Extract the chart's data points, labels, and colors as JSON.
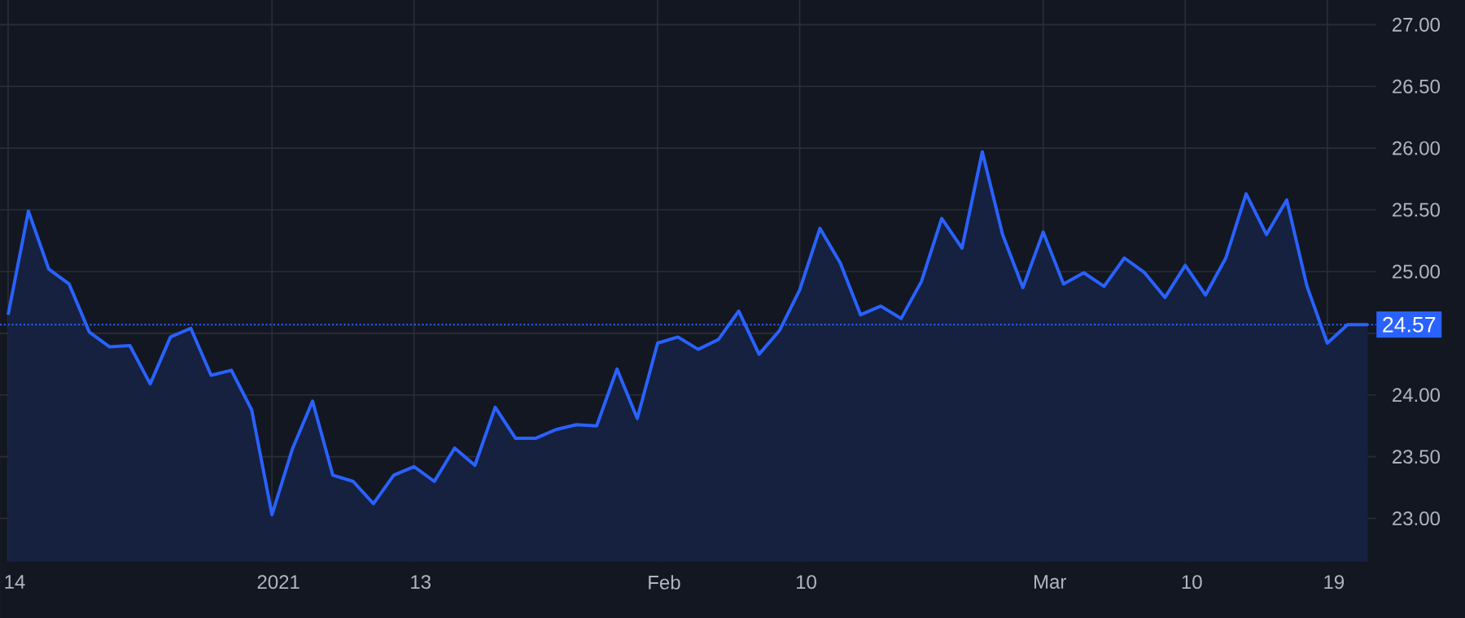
{
  "chart_data": {
    "type": "area",
    "categories": [
      "14",
      null,
      null,
      null,
      null,
      null,
      null,
      null,
      null,
      null,
      null,
      null,
      null,
      "2021",
      null,
      null,
      null,
      null,
      null,
      null,
      "13",
      null,
      null,
      null,
      null,
      null,
      null,
      null,
      null,
      null,
      null,
      null,
      "Feb",
      null,
      null,
      null,
      null,
      null,
      null,
      "10",
      null,
      null,
      null,
      null,
      null,
      null,
      null,
      null,
      null,
      null,
      null,
      "Mar",
      null,
      null,
      null,
      null,
      null,
      null,
      "10",
      null,
      null,
      null,
      null,
      null,
      null,
      "19",
      null,
      null
    ],
    "series": [
      {
        "color": "#2962ff",
        "values": [
          24.65,
          25.49,
          25.02,
          24.9,
          24.51,
          24.39,
          24.4,
          24.09,
          24.47,
          24.54,
          24.16,
          24.2,
          23.88,
          23.03,
          23.56,
          23.95,
          23.35,
          23.3,
          23.12,
          23.35,
          23.42,
          23.3,
          23.57,
          23.43,
          23.9,
          23.65,
          23.65,
          23.72,
          23.76,
          23.75,
          24.21,
          23.81,
          24.42,
          24.47,
          24.37,
          24.45,
          24.68,
          24.33,
          24.52,
          24.85,
          25.35,
          25.07,
          24.65,
          24.72,
          24.62,
          24.92,
          25.43,
          25.19,
          25.97,
          25.3,
          24.87,
          25.32,
          24.9,
          24.99,
          24.88,
          25.11,
          24.99,
          24.79,
          25.05,
          24.81,
          25.11,
          25.63,
          25.3,
          25.58,
          24.88,
          24.42,
          24.57,
          24.57
        ]
      }
    ],
    "ylim": [
      22.65,
      27.2
    ],
    "yticks": [
      {
        "value": 23,
        "label": "23.00"
      },
      {
        "value": 23.5,
        "label": "23.50"
      },
      {
        "value": 24,
        "label": "24.00"
      },
      {
        "value": 24.5,
        "label": null
      },
      {
        "value": 25,
        "label": "25.00"
      },
      {
        "value": 25.5,
        "label": "25.50"
      },
      {
        "value": 26,
        "label": "26.00"
      },
      {
        "value": 26.5,
        "label": "26.50"
      },
      {
        "value": 27,
        "label": "27.00"
      }
    ],
    "grid": true,
    "ref_lines": [
      {
        "axis": "y",
        "value": 24.57,
        "label": "24.57",
        "color": "#2962ff",
        "line_style": "dotted"
      }
    ]
  }
}
